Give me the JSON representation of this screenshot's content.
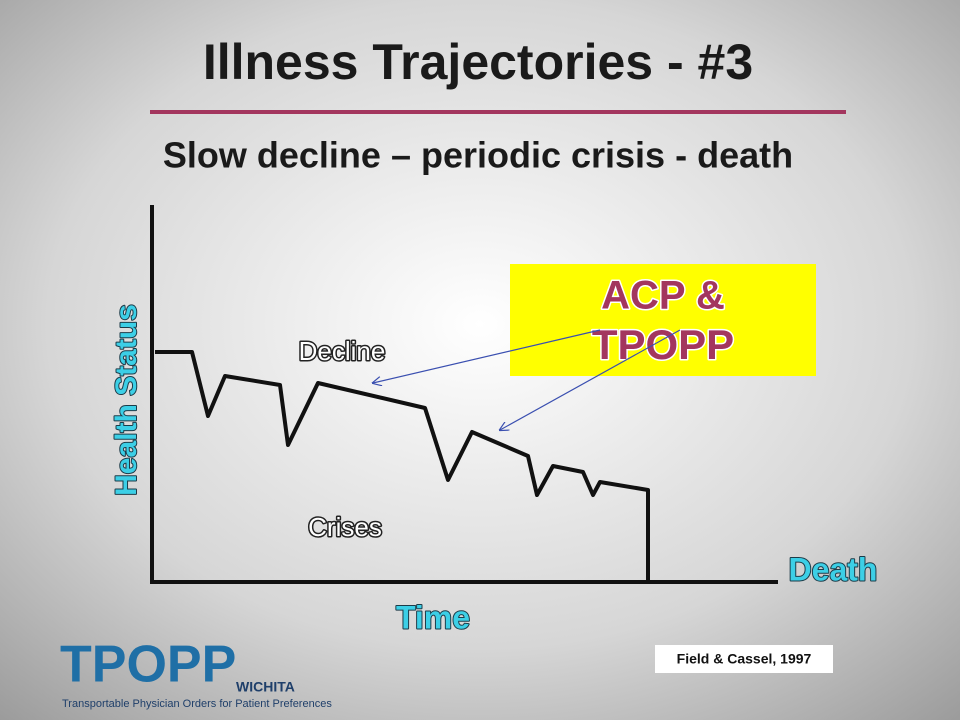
{
  "title": "Illness Trajectories - #3",
  "subtitle": "Slow decline – periodic crisis - death",
  "diagram": {
    "y_axis_label": "Health Status",
    "x_axis_label": "Time",
    "end_label": "Death",
    "decline_label": "Decline",
    "crises_label": "Crises",
    "callout": {
      "line1": "ACP &",
      "line2": "TPOPP"
    }
  },
  "citation": "Field & Cassel, 1997",
  "logo": {
    "name": "TPOPP",
    "city": "WICHITA",
    "tagline": "Transportable Physician Orders for Patient Preferences"
  }
}
